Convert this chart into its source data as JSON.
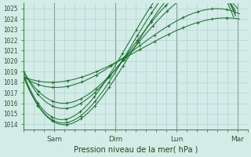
{
  "title": "",
  "xlabel": "Pression niveau de la mer( hPa )",
  "ylabel": "",
  "ylim": [
    1013.5,
    1025.5
  ],
  "yticks": [
    1014,
    1015,
    1016,
    1017,
    1018,
    1019,
    1020,
    1021,
    1022,
    1023,
    1024,
    1025
  ],
  "xlim": [
    0,
    5.5
  ],
  "background_color": "#d4ece8",
  "grid_color": "#aacccc",
  "line_color": "#1a6e2e",
  "tick_label_color": "#2a5a2a",
  "xlabel_color": "#1a4a1a",
  "day_positions": [
    0.75,
    2.25,
    3.75,
    5.25
  ],
  "day_labels": [
    "Sam",
    "Dim",
    "Lun",
    "Mar"
  ],
  "series": [
    {
      "kx": [
        0.0,
        1.1,
        2.0,
        5.2
      ],
      "ky": [
        1018.5,
        1014.0,
        1017.0,
        1024.5
      ]
    },
    {
      "kx": [
        0.0,
        1.1,
        1.95,
        5.2
      ],
      "ky": [
        1018.5,
        1014.2,
        1017.2,
        1024.3
      ]
    },
    {
      "kx": [
        0.0,
        1.05,
        1.9,
        5.15
      ],
      "ky": [
        1018.7,
        1014.5,
        1017.5,
        1024.2
      ]
    },
    {
      "kx": [
        0.0,
        1.0,
        2.1,
        5.2
      ],
      "ky": [
        1019.0,
        1015.5,
        1018.5,
        1024.8
      ]
    },
    {
      "kx": [
        0.0,
        0.95,
        2.2,
        5.25
      ],
      "ky": [
        1019.0,
        1016.0,
        1019.0,
        1025.0
      ]
    },
    {
      "kx": [
        0.0,
        0.8,
        2.5,
        5.3
      ],
      "ky": [
        1018.5,
        1017.5,
        1020.5,
        1024.5
      ]
    },
    {
      "kx": [
        0.0,
        0.75,
        2.8,
        5.3
      ],
      "ky": [
        1018.5,
        1018.0,
        1021.0,
        1024.0
      ]
    }
  ]
}
